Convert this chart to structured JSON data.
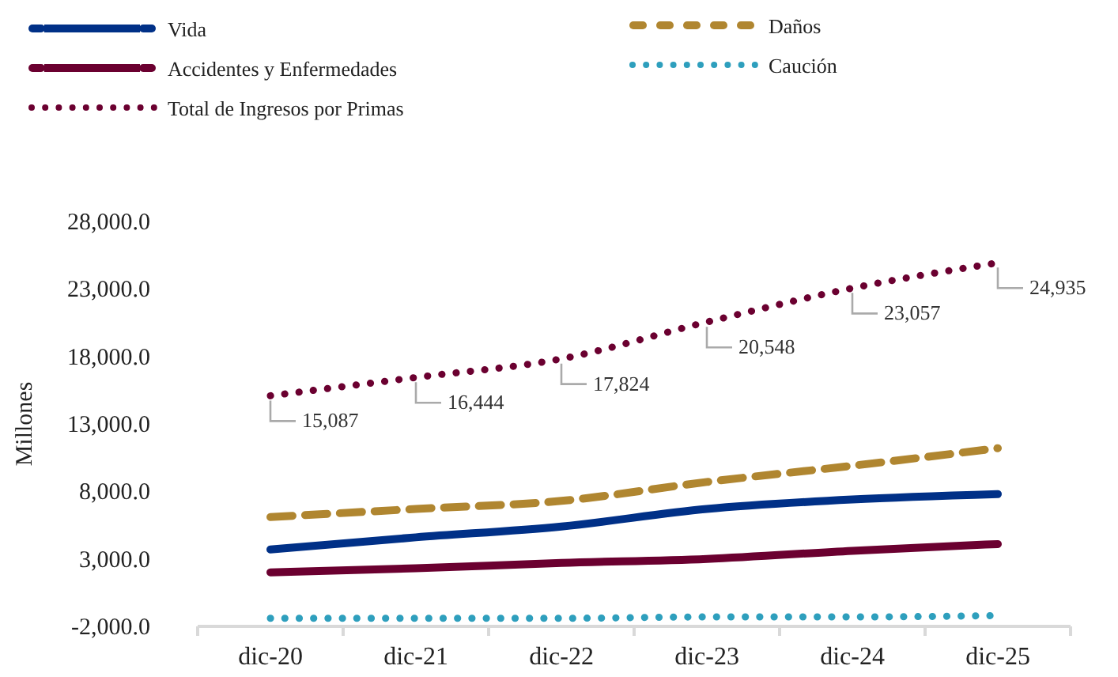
{
  "chart_data": {
    "type": "line",
    "ylabel": "Millones",
    "categories": [
      "dic-20",
      "dic-21",
      "dic-22",
      "dic-23",
      "dic-24",
      "dic-25"
    ],
    "series": [
      {
        "name": "Vida",
        "color": "#003087",
        "line_style": "solid",
        "values": [
          3700,
          4600,
          5400,
          6700,
          7400,
          7800
        ]
      },
      {
        "name": "Daños",
        "color": "#b08630",
        "line_style": "dashed",
        "values": [
          6100,
          6700,
          7300,
          8700,
          9900,
          11200
        ]
      },
      {
        "name": "Accidentes y Enfermedades",
        "color": "#6b0030",
        "line_style": "solid",
        "values": [
          2000,
          2300,
          2700,
          3000,
          3600,
          4100
        ]
      },
      {
        "name": "Caución",
        "color": "#2e9fbd",
        "line_style": "dotted",
        "values": [
          -1400,
          -1400,
          -1400,
          -1300,
          -1300,
          -1200
        ]
      },
      {
        "name": "Total de Ingresos por Primas",
        "color": "#6b0030",
        "line_style": "dotted",
        "values": [
          15087,
          16444,
          17824,
          20548,
          23057,
          24935
        ],
        "value_labels": [
          "15,087",
          "16,444",
          "17,824",
          "20,548",
          "23,057",
          "24,935"
        ]
      }
    ],
    "ylim": [
      -2000,
      28000
    ],
    "yticks": [
      {
        "value": -2000,
        "label": "-2,000.0"
      },
      {
        "value": 3000,
        "label": "3,000.0"
      },
      {
        "value": 8000,
        "label": "8,000.0"
      },
      {
        "value": 13000,
        "label": "13,000.0"
      },
      {
        "value": 18000,
        "label": "18,000.0"
      },
      {
        "value": 23000,
        "label": "23,000.0"
      },
      {
        "value": 28000,
        "label": "28,000.0"
      }
    ],
    "grid": false,
    "legend": "top"
  }
}
